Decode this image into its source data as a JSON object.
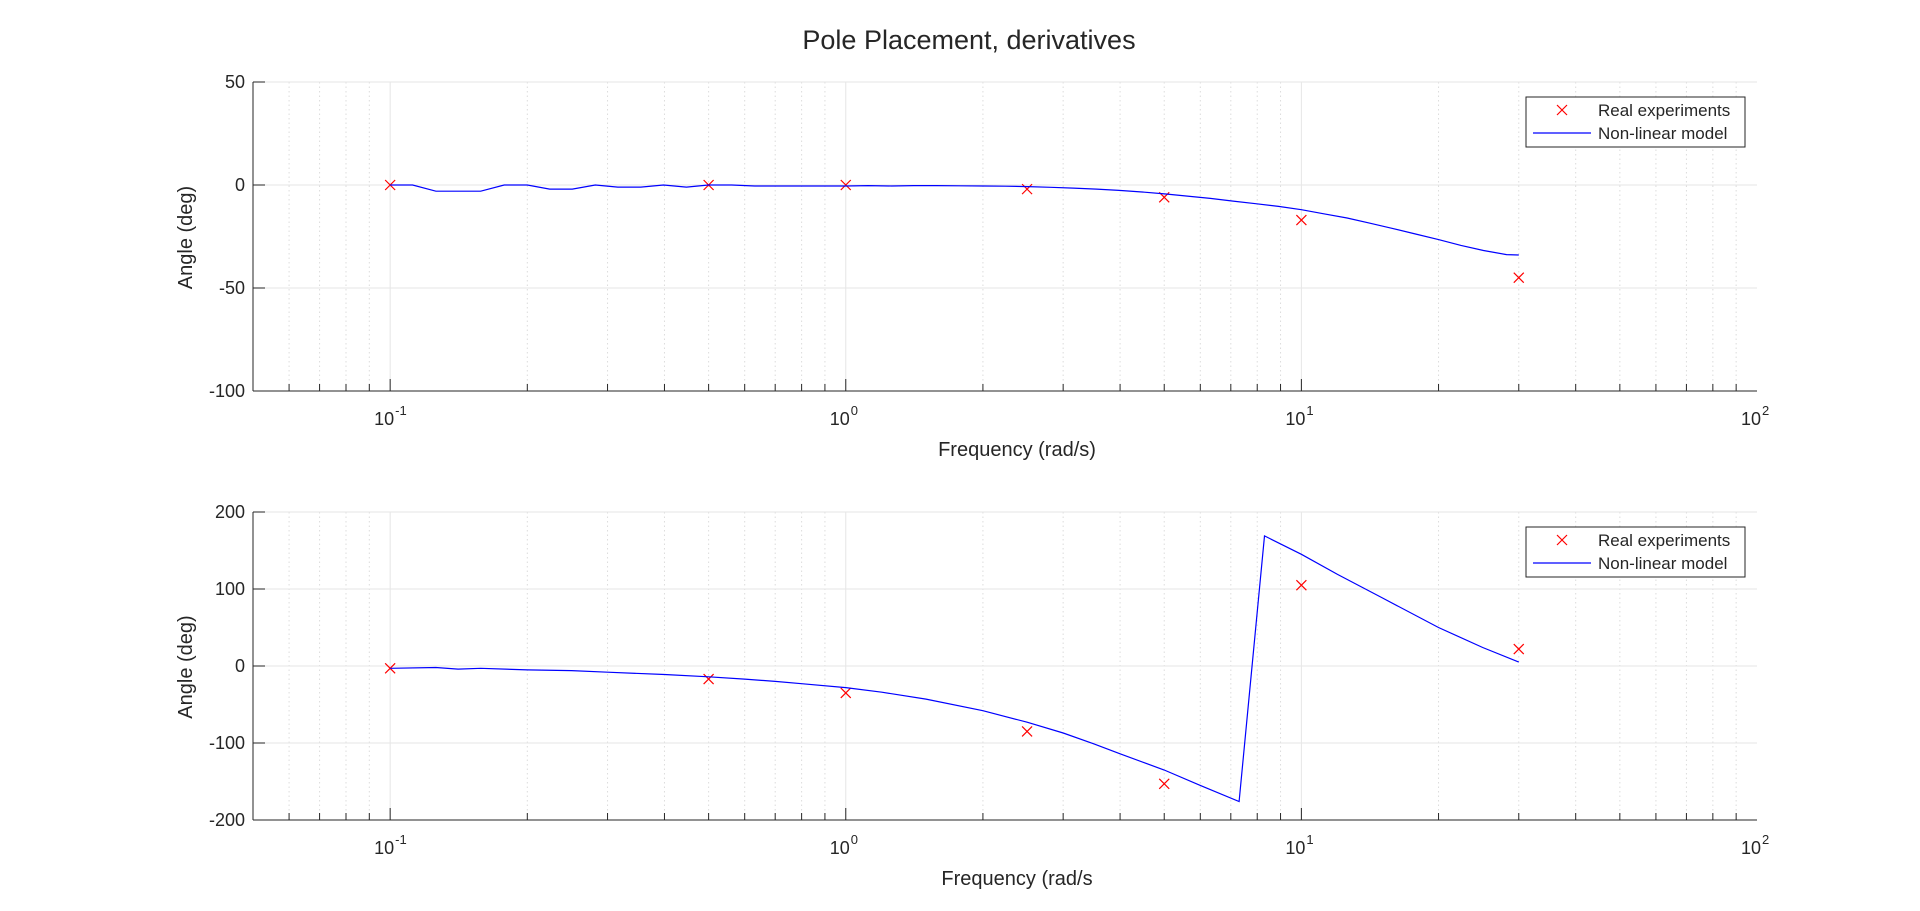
{
  "figure": {
    "title": "Pole Placement, derivatives"
  },
  "chart_data": [
    {
      "type": "line",
      "xscale": "log",
      "xlim": [
        0.05,
        100
      ],
      "ylim": [
        -100,
        50
      ],
      "yticks": [
        -100,
        -50,
        0,
        50
      ],
      "xticks": [
        0.1,
        1,
        10,
        100
      ],
      "xtick_labels": [
        {
          "base": "10",
          "exp": "-1"
        },
        {
          "base": "10",
          "exp": "0"
        },
        {
          "base": "10",
          "exp": "1"
        },
        {
          "base": "10",
          "exp": "2"
        }
      ],
      "xlabel": "Frequency (rad/s)",
      "ylabel": "Angle (deg)",
      "grid": true,
      "legend_position": "top-right",
      "series": [
        {
          "name": "Real experiments",
          "style": "markers-x",
          "color": "#ff0000",
          "x": [
            0.1,
            0.5,
            1,
            2.5,
            5,
            10,
            30
          ],
          "y": [
            0,
            0,
            0,
            -2,
            -6,
            -17,
            -45
          ]
        },
        {
          "name": "Non-linear model",
          "style": "line",
          "color": "#0000ff",
          "x": [
            0.1,
            0.112,
            0.126,
            0.141,
            0.158,
            0.178,
            0.2,
            0.224,
            0.251,
            0.282,
            0.316,
            0.355,
            0.398,
            0.447,
            0.5,
            0.562,
            0.631,
            0.708,
            0.794,
            0.891,
            1,
            1.12,
            1.26,
            1.41,
            1.58,
            1.78,
            2,
            2.24,
            2.51,
            2.82,
            3.16,
            3.55,
            3.98,
            4.47,
            5.01,
            5.62,
            6.31,
            7.08,
            7.94,
            8.91,
            10,
            11.2,
            12.6,
            14.1,
            15.8,
            17.8,
            20,
            22.4,
            25.1,
            28.2,
            30
          ],
          "y": [
            0,
            0,
            -3,
            -3,
            -3,
            0,
            0,
            -2,
            -2,
            0,
            -1,
            -1,
            0,
            -1,
            0,
            0,
            -0.5,
            -0.5,
            -0.5,
            -0.5,
            -0.5,
            -0.3,
            -0.5,
            -0.3,
            -0.3,
            -0.4,
            -0.5,
            -0.6,
            -0.8,
            -1.1,
            -1.5,
            -2,
            -2.6,
            -3.4,
            -4.3,
            -5.4,
            -6.5,
            -7.8,
            -9.1,
            -10.4,
            -12,
            -14,
            -16,
            -18.5,
            -21,
            -23.8,
            -26.5,
            -29.3,
            -31.8,
            -33.8,
            -34
          ]
        }
      ]
    },
    {
      "type": "line",
      "xscale": "log",
      "xlim": [
        0.05,
        100
      ],
      "ylim": [
        -200,
        200
      ],
      "yticks": [
        -200,
        -100,
        0,
        100,
        200
      ],
      "xticks": [
        0.1,
        1,
        10,
        100
      ],
      "xtick_labels": [
        {
          "base": "10",
          "exp": "-1"
        },
        {
          "base": "10",
          "exp": "0"
        },
        {
          "base": "10",
          "exp": "1"
        },
        {
          "base": "10",
          "exp": "2"
        }
      ],
      "xlabel": "Frequency (rad/s",
      "ylabel": "Angle (deg)",
      "grid": true,
      "legend_position": "top-right",
      "series": [
        {
          "name": "Real experiments",
          "style": "markers-x",
          "color": "#ff0000",
          "x": [
            0.1,
            0.5,
            1,
            2.5,
            5,
            10,
            30
          ],
          "y": [
            -3,
            -17,
            -35,
            -85,
            -153,
            105,
            22
          ]
        },
        {
          "name": "Non-linear model",
          "style": "line",
          "color": "#0000ff",
          "x": [
            0.1,
            0.126,
            0.141,
            0.158,
            0.2,
            0.25,
            0.3,
            0.4,
            0.5,
            0.6,
            0.7,
            0.8,
            1,
            1.2,
            1.5,
            2,
            2.5,
            3,
            3.5,
            4,
            5,
            6,
            7.3,
            8.3,
            10,
            12,
            15,
            20,
            25,
            30
          ],
          "y": [
            -3,
            -2,
            -4,
            -3,
            -5,
            -6,
            -8,
            -11,
            -14,
            -17,
            -20,
            -23,
            -28,
            -34,
            -43,
            -58,
            -73,
            -87,
            -101,
            -114,
            -135,
            -155,
            -176,
            169,
            145,
            119,
            89,
            50,
            24,
            5
          ]
        }
      ]
    }
  ]
}
